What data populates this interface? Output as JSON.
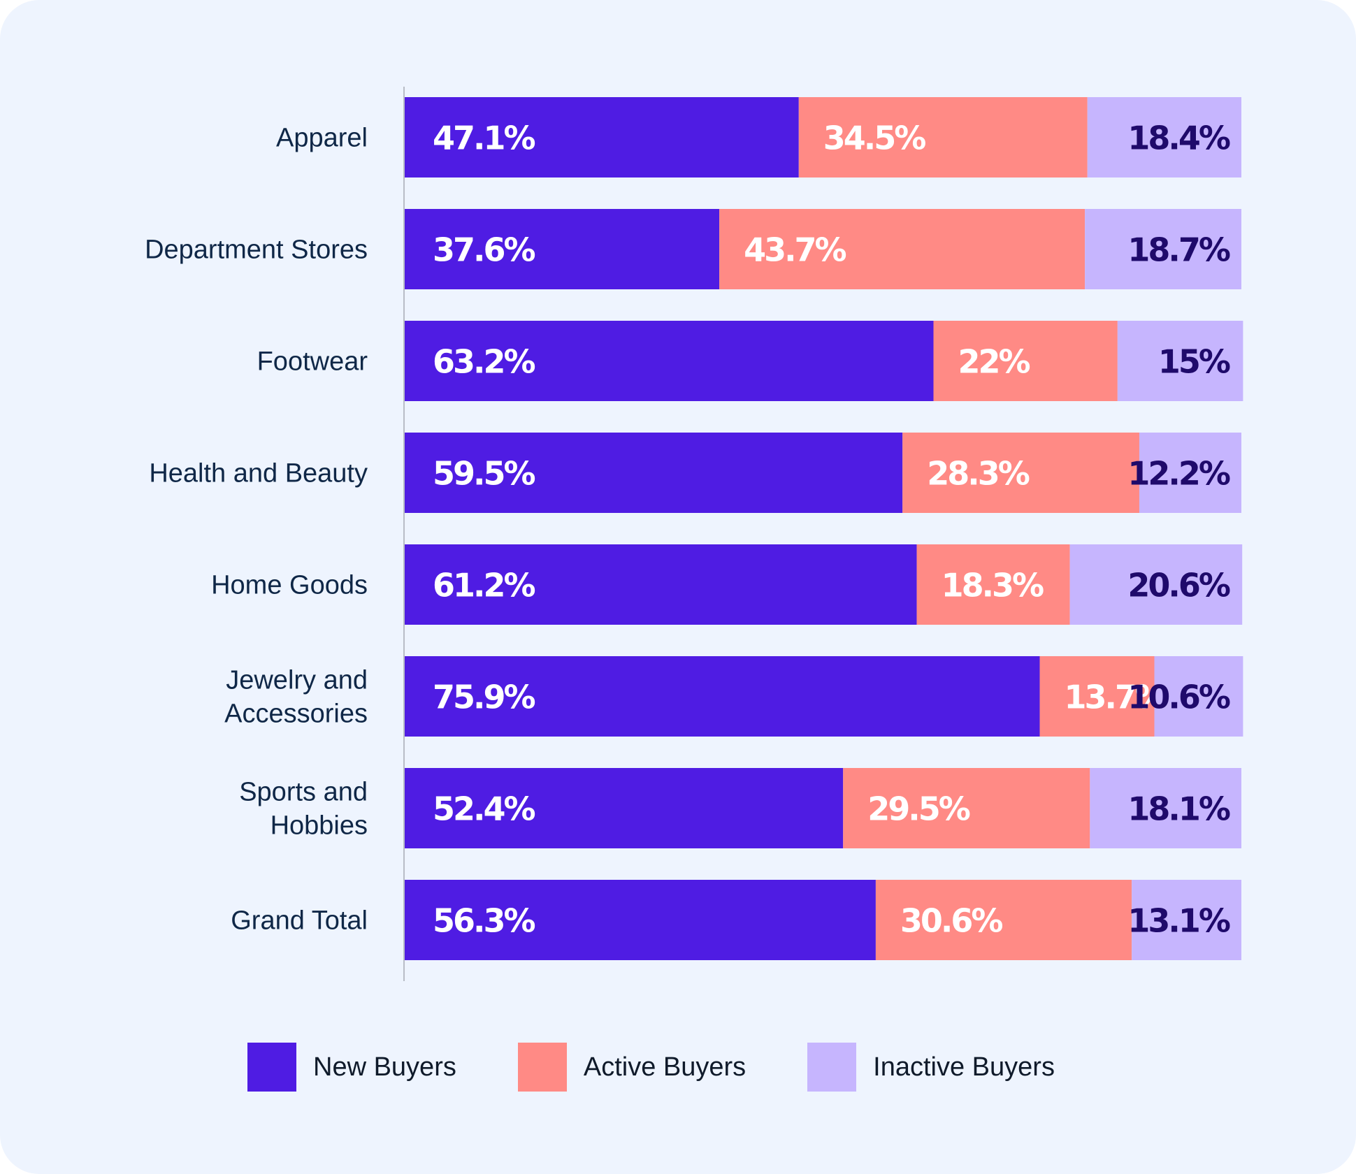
{
  "chart_data": {
    "type": "bar",
    "orientation": "horizontal",
    "stacked": true,
    "title": "",
    "xlabel": "",
    "ylabel": "",
    "xlim": [
      0,
      100
    ],
    "grid": false,
    "legend_position": "bottom",
    "categories": [
      "Apparel",
      "Department Stores",
      "Footwear",
      "Health and Beauty",
      "Home Goods",
      "Jewelry and Accessories",
      "Sports and Hobbies",
      "Grand Total"
    ],
    "category_lines": [
      [
        "Apparel"
      ],
      [
        "Department Stores"
      ],
      [
        "Footwear"
      ],
      [
        "Health and Beauty"
      ],
      [
        "Home Goods"
      ],
      [
        "Jewelry and",
        "Accessories"
      ],
      [
        "Sports and",
        "Hobbies"
      ],
      [
        "Grand Total"
      ]
    ],
    "series": [
      {
        "name": "New Buyers",
        "color": "#4f1ce3",
        "label_color": "#ffffff",
        "values": [
          47.1,
          37.6,
          63.2,
          59.5,
          61.2,
          75.9,
          52.4,
          56.3
        ],
        "labels": [
          "47.1%",
          "37.6%",
          "63.2%",
          "59.5%",
          "61.2%",
          "75.9%",
          "52.4%",
          "56.3%"
        ]
      },
      {
        "name": "Active Buyers",
        "color": "#ff8a85",
        "label_color": "#ffffff",
        "values": [
          34.5,
          43.7,
          22,
          28.3,
          18.3,
          13.7,
          29.5,
          30.6
        ],
        "labels": [
          "34.5%",
          "43.7%",
          "22%",
          "28.3%",
          "18.3%",
          "13.7%",
          "29.5%",
          "30.6%"
        ]
      },
      {
        "name": "Inactive Buyers",
        "color": "#c6b5fe",
        "label_color": "#1f0a6b",
        "values": [
          18.4,
          18.7,
          15,
          12.2,
          20.6,
          10.6,
          18.1,
          13.1
        ],
        "labels": [
          "18.4%",
          "18.7%",
          "15%",
          "12.2%",
          "20.6%",
          "10.6%",
          "18.1%",
          "13.1%"
        ]
      }
    ]
  },
  "legend": {
    "items": [
      {
        "label": "New Buyers",
        "color": "#4f1ce3"
      },
      {
        "label": "Active Buyers",
        "color": "#ff8a85"
      },
      {
        "label": "Inactive Buyers",
        "color": "#c6b5fe"
      }
    ]
  },
  "colors": {
    "background": "#eef4fe",
    "axis": "#b8bcc6",
    "category_text": "#0f2747"
  }
}
